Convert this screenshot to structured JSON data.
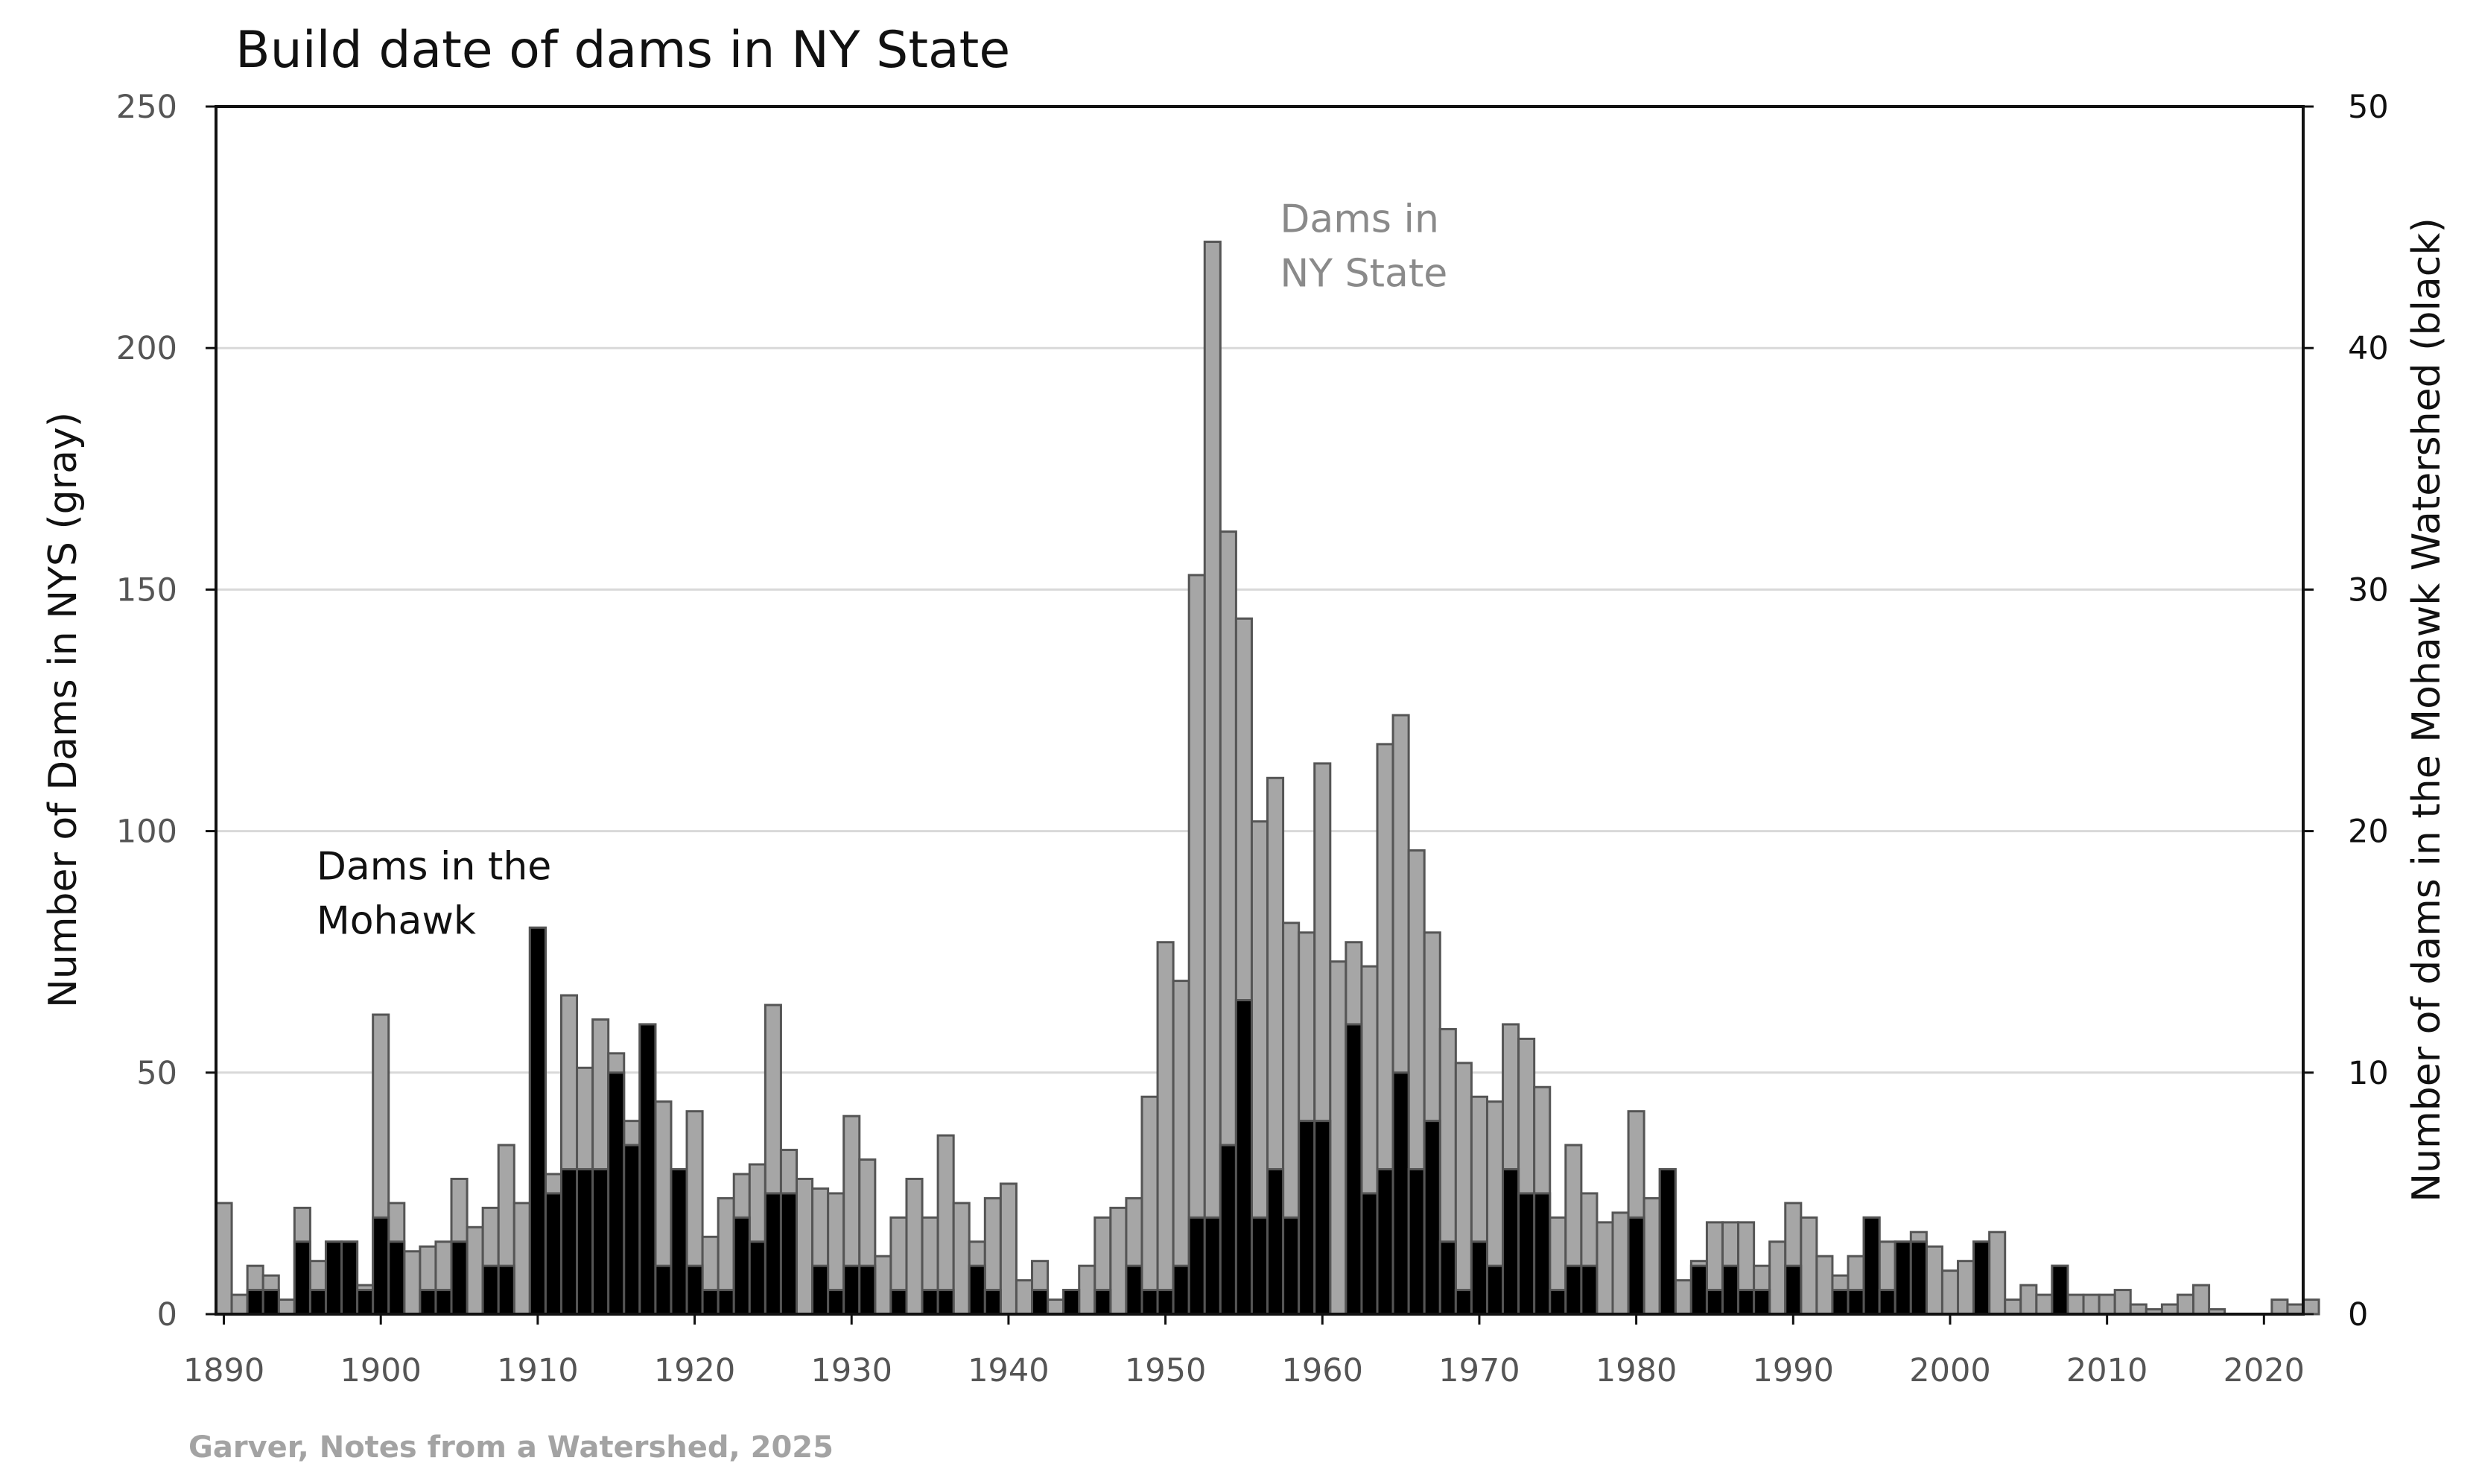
{
  "chart_data": {
    "type": "bar",
    "title": "Build date of dams in NY State",
    "ylabel_left": "Number of Dams in NYS (gray)",
    "ylabel_right": "Number of dams in the Mohawk Watershed (black)",
    "ylim_left": [
      0,
      250
    ],
    "ylim_right": [
      0,
      50
    ],
    "yticks_left": [
      0,
      50,
      100,
      150,
      200,
      250
    ],
    "yticks_right": [
      0,
      10,
      20,
      30,
      40,
      50
    ],
    "xlim": [
      1890,
      2023
    ],
    "xticks": [
      1890,
      1900,
      1910,
      1920,
      1930,
      1940,
      1950,
      1960,
      1970,
      1980,
      1990,
      2000,
      2010,
      2020
    ],
    "grid": "horizontal",
    "annotations": [
      {
        "lines": [
          "Dams in",
          "NY State"
        ],
        "color": "#8a8a8a",
        "x": 1957.8,
        "y_left": 224
      },
      {
        "lines": [
          "Dams in the",
          "Mohawk"
        ],
        "color": "#111111",
        "x": 1896.4,
        "y_left": 90
      }
    ],
    "credit": "Garver, Notes from a Watershed, 2025",
    "colors": {
      "nys": "#a6a6a6",
      "mohawk": "#000000",
      "grid": "#d9d9d9",
      "bar_edge": "#555555"
    },
    "series": [
      {
        "name": "Dams in NY State",
        "axis": "left",
        "color": "#a6a6a6",
        "start_year": 1890,
        "values": [
          23,
          4,
          10,
          8,
          3,
          22,
          11,
          15,
          15,
          6,
          62,
          23,
          13,
          14,
          15,
          28,
          18,
          22,
          35,
          23,
          80,
          29,
          66,
          51,
          61,
          54,
          40,
          60,
          44,
          30,
          42,
          16,
          24,
          29,
          31,
          64,
          34,
          28,
          26,
          25,
          41,
          32,
          12,
          20,
          28,
          20,
          37,
          23,
          15,
          24,
          27,
          7,
          11,
          3,
          5,
          10,
          20,
          22,
          24,
          45,
          77,
          69,
          153,
          222,
          162,
          144,
          102,
          111,
          81,
          79,
          114,
          73,
          77,
          72,
          118,
          124,
          96,
          79,
          59,
          52,
          45,
          44,
          60,
          57,
          47,
          20,
          35,
          25,
          19,
          21,
          42,
          24,
          30,
          7,
          11,
          19,
          19,
          19,
          10,
          15,
          23,
          20,
          12,
          8,
          12,
          20,
          15,
          15,
          17,
          14,
          9,
          11,
          15,
          17,
          3,
          6,
          4,
          10,
          4,
          4,
          4,
          5,
          2,
          1,
          2,
          4,
          6,
          1,
          0,
          0,
          0,
          3,
          2,
          3
        ]
      },
      {
        "name": "Dams in the Mohawk Watershed",
        "axis": "right",
        "color": "#000000",
        "start_year": 1890,
        "values": [
          0,
          0,
          1,
          1,
          0,
          3,
          1,
          3,
          3,
          1,
          4,
          3,
          0,
          1,
          1,
          3,
          0,
          2,
          2,
          0,
          16,
          5,
          6,
          6,
          6,
          10,
          7,
          12,
          2,
          6,
          2,
          1,
          1,
          4,
          3,
          5,
          5,
          0,
          2,
          1,
          2,
          2,
          0,
          1,
          0,
          1,
          1,
          0,
          2,
          1,
          0,
          0,
          1,
          0,
          1,
          0,
          1,
          0,
          2,
          1,
          1,
          2,
          4,
          4,
          7,
          13,
          4,
          6,
          4,
          8,
          8,
          0,
          12,
          5,
          6,
          10,
          6,
          8,
          3,
          1,
          3,
          2,
          6,
          5,
          5,
          1,
          2,
          2,
          0,
          0,
          4,
          0,
          6,
          0,
          2,
          1,
          2,
          1,
          1,
          0,
          2,
          0,
          0,
          1,
          1,
          4,
          1,
          3,
          3,
          0,
          0,
          0,
          3,
          0,
          0,
          0,
          0,
          2,
          0,
          0,
          0,
          0,
          0,
          0,
          0,
          0,
          0,
          0,
          0,
          0,
          0,
          0,
          0,
          0
        ]
      }
    ]
  }
}
